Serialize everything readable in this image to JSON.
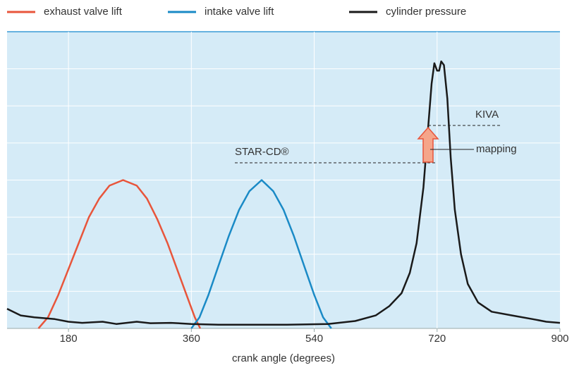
{
  "chart_data": {
    "type": "line",
    "xlabel": "crank angle (degrees)",
    "xlim": [
      90,
      900
    ],
    "xticks": [
      180,
      360,
      540,
      720,
      900
    ],
    "ylim": [
      0,
      8
    ],
    "yticks": [
      1,
      2,
      3,
      4,
      5,
      6,
      7
    ],
    "grid": true,
    "legend": "top",
    "series": [
      {
        "name": "exhaust valve lift",
        "color": "#e8553b",
        "x": [
          136,
          150,
          165,
          180,
          195,
          210,
          225,
          240,
          260,
          280,
          295,
          310,
          325,
          340,
          355,
          365,
          373
        ],
        "values": [
          0,
          0.3,
          0.9,
          1.6,
          2.3,
          3.0,
          3.5,
          3.85,
          4.0,
          3.85,
          3.5,
          2.95,
          2.3,
          1.55,
          0.8,
          0.3,
          0
        ]
      },
      {
        "name": "intake valve lift",
        "color": "#1a8ac6",
        "x": [
          360,
          372,
          385,
          400,
          415,
          430,
          445,
          463,
          480,
          495,
          510,
          525,
          540,
          553,
          565
        ],
        "values": [
          0,
          0.3,
          0.9,
          1.7,
          2.5,
          3.2,
          3.7,
          4.0,
          3.7,
          3.2,
          2.5,
          1.7,
          0.9,
          0.3,
          0
        ]
      },
      {
        "name": "cylinder pressure",
        "color": "#1a1a1a",
        "x": [
          90,
          110,
          130,
          160,
          180,
          200,
          230,
          250,
          280,
          300,
          330,
          360,
          400,
          450,
          500,
          560,
          600,
          630,
          650,
          668,
          680,
          690,
          700,
          706,
          712,
          716,
          720,
          723,
          726,
          730,
          735,
          740,
          746,
          755,
          765,
          780,
          800,
          830,
          860,
          880,
          900
        ],
        "values": [
          0.53,
          0.35,
          0.3,
          0.25,
          0.18,
          0.15,
          0.18,
          0.12,
          0.18,
          0.14,
          0.15,
          0.12,
          0.1,
          0.1,
          0.1,
          0.12,
          0.2,
          0.35,
          0.6,
          0.95,
          1.5,
          2.3,
          3.8,
          5.2,
          6.6,
          7.15,
          6.95,
          6.95,
          7.2,
          7.1,
          6.2,
          4.6,
          3.2,
          2.0,
          1.2,
          0.7,
          0.45,
          0.35,
          0.25,
          0.18,
          0.15
        ]
      }
    ],
    "annotations": [
      "KIVA",
      "STAR-CD®",
      "mapping"
    ]
  }
}
